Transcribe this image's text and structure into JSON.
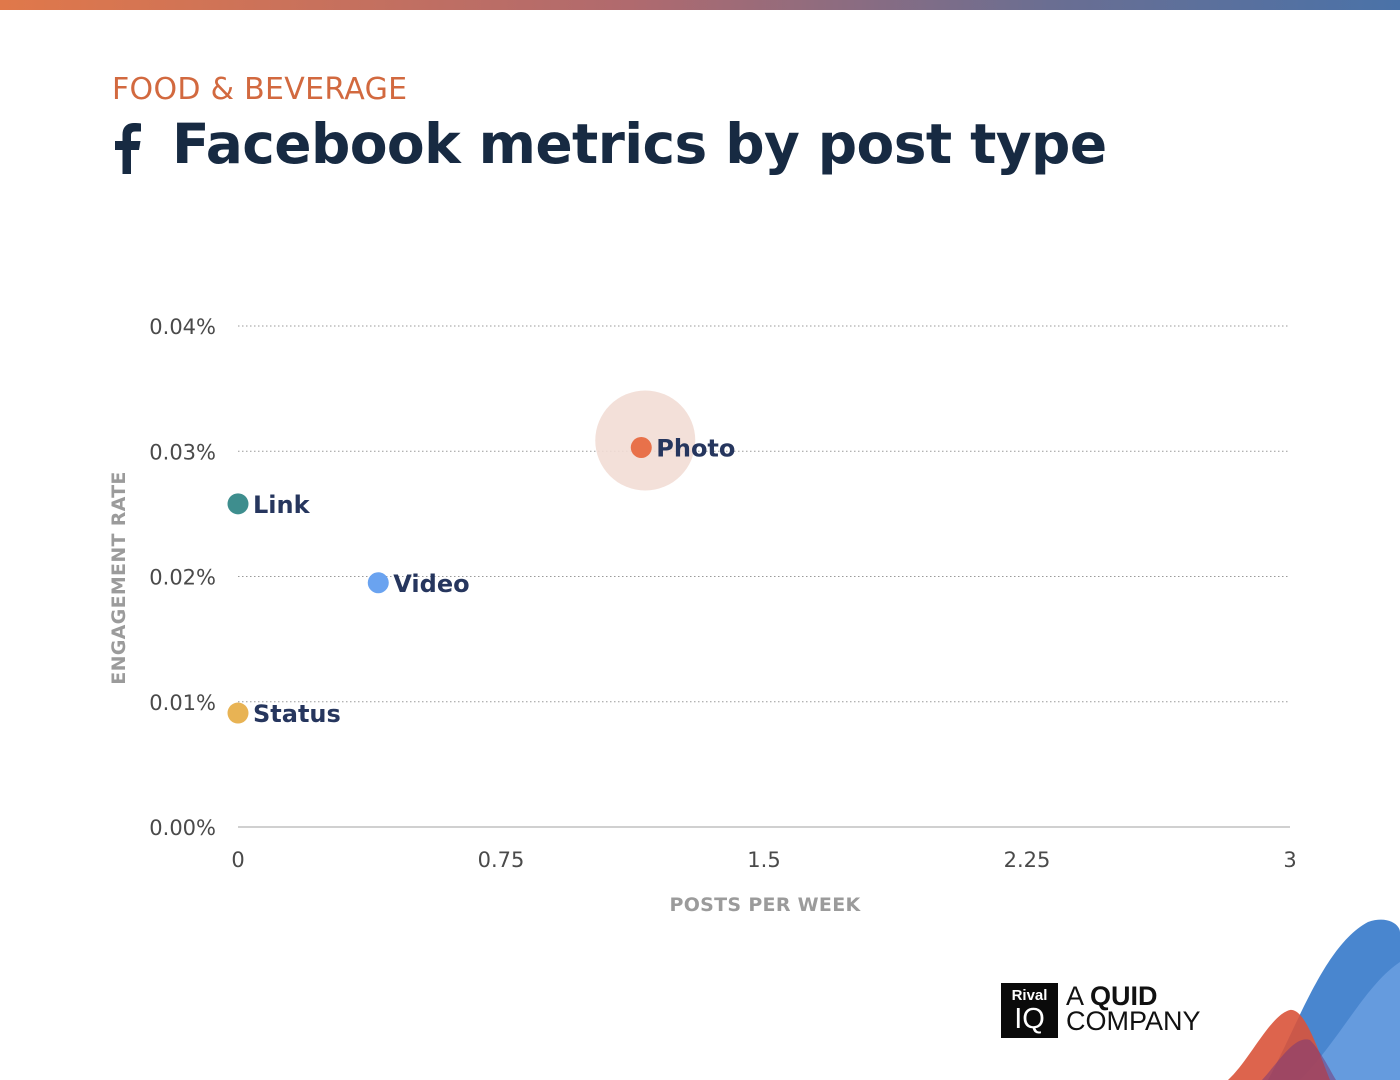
{
  "header": {
    "category": "FOOD & BEVERAGE",
    "title": "Facebook metrics by post type",
    "icon": "facebook-icon"
  },
  "colors": {
    "accent": "#d2693f",
    "title": "#172a42",
    "axis_label": "#9b9b9b",
    "point_label": "#26365e"
  },
  "chart_data": {
    "type": "scatter",
    "title": "Facebook metrics by post type",
    "xlabel": "POSTS PER WEEK",
    "ylabel": "ENGAGEMENT RATE",
    "xlim": [
      0,
      3
    ],
    "ylim": [
      0,
      0.04
    ],
    "x_ticks": [
      {
        "value": 0,
        "label": "0"
      },
      {
        "value": 0.75,
        "label": "0.75"
      },
      {
        "value": 1.5,
        "label": "1.5"
      },
      {
        "value": 2.25,
        "label": "2.25"
      },
      {
        "value": 3,
        "label": "3"
      }
    ],
    "y_ticks": [
      {
        "value": 0,
        "label": "0.00%"
      },
      {
        "value": 0.01,
        "label": "0.01%"
      },
      {
        "value": 0.02,
        "label": "0.02%"
      },
      {
        "value": 0.03,
        "label": "0.03%"
      },
      {
        "value": 0.04,
        "label": "0.04%"
      }
    ],
    "grid": "horizontal dotted",
    "points": [
      {
        "label": "Photo",
        "x": 1.15,
        "y": 0.0303,
        "color": "#e8714a",
        "highlight": true
      },
      {
        "label": "Link",
        "x": 0.0,
        "y": 0.0258,
        "color": "#3e8e8e",
        "highlight": false
      },
      {
        "label": "Video",
        "x": 0.4,
        "y": 0.0195,
        "color": "#6aa3f0",
        "highlight": false
      },
      {
        "label": "Status",
        "x": 0.0,
        "y": 0.0091,
        "color": "#e8b354",
        "highlight": false
      }
    ]
  },
  "branding": {
    "logo_top": "Rival",
    "logo_bottom": "IQ",
    "tagline_line1_prefix": "A ",
    "tagline_line1_bold": "QUID",
    "tagline_line2": "COMPANY"
  }
}
